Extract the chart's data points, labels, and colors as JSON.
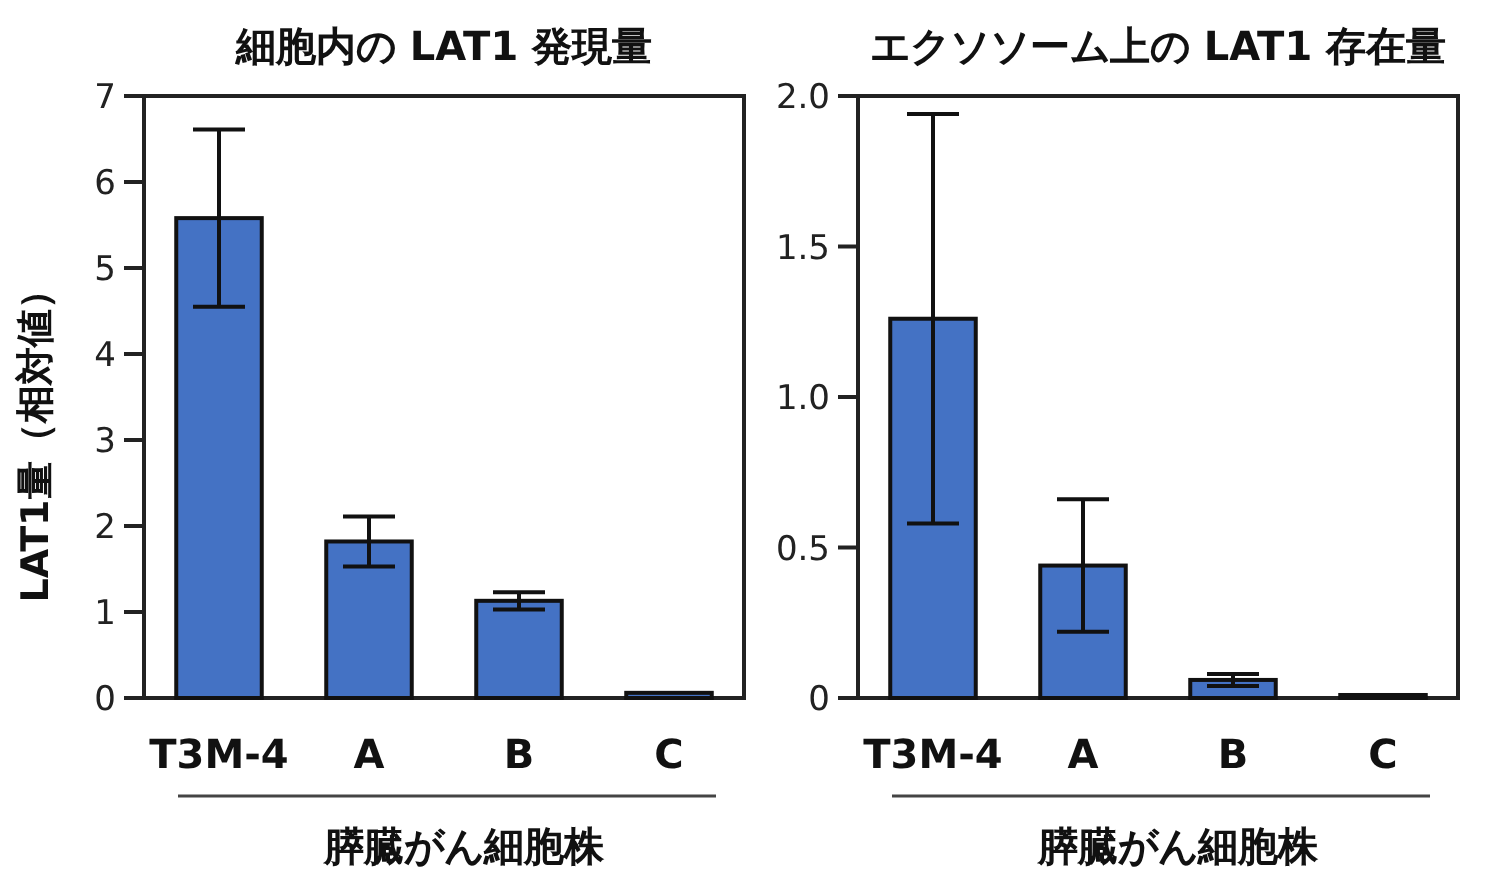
{
  "chart_data": [
    {
      "type": "bar",
      "title": "細胞内の LAT1 発現量",
      "ylabel": "LAT1量（相対値）",
      "xlabel": "膵臓がん細胞株",
      "categories": [
        "T3M-4",
        "A",
        "B",
        "C"
      ],
      "values": [
        5.58,
        1.82,
        1.13,
        0.06
      ],
      "errors": [
        1.03,
        0.29,
        0.1,
        null
      ],
      "color": "#4472c4",
      "ylim": [
        0,
        7
      ],
      "yticks": [
        0,
        1,
        2,
        3,
        4,
        5,
        6,
        7
      ]
    },
    {
      "type": "bar",
      "title": "エクソソーム上の LAT1 存在量",
      "xlabel": "膵臓がん細胞株",
      "categories": [
        "T3M-4",
        "A",
        "B",
        "C"
      ],
      "values": [
        1.26,
        0.44,
        0.06,
        0.01
      ],
      "errors": [
        0.68,
        0.22,
        0.02,
        null
      ],
      "color": "#4472c4",
      "ylim": [
        0,
        2
      ],
      "yticks": [
        0,
        0.5,
        {
          "value": 1,
          "label": "1.0"
        },
        1.5,
        {
          "value": 2,
          "label": "2.0"
        }
      ]
    }
  ]
}
